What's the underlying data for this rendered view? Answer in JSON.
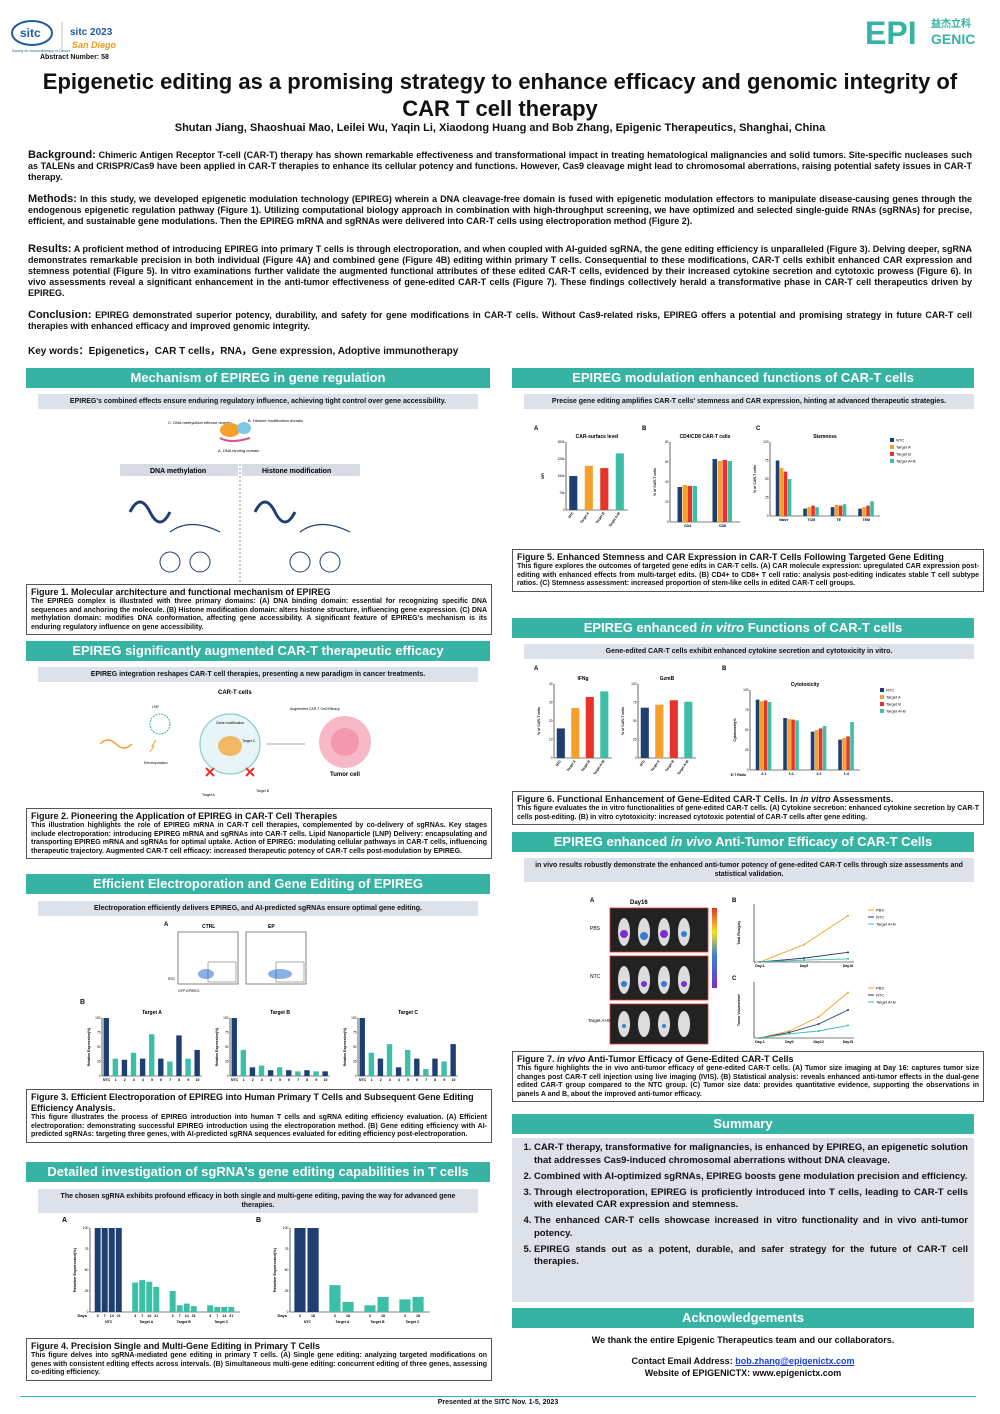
{
  "header": {
    "sitc_logo": "sitc",
    "sitc_logo_sub": "Society for Immunotherapy of Cancer",
    "sitc_event": "sitc 2023",
    "sitc_city": "San Diego",
    "abstract_number": "Abstract Number: 58",
    "epi_logo": "EPI",
    "epi_logo_cn": "益杰立科",
    "epi_logo_word": "GENIC",
    "title": "Epigenetic editing as a promising strategy to enhance efficacy and genomic integrity of CAR T cell therapy",
    "authors": "Shutan Jiang, Shaoshuai Mao, Leilei Wu, Yaqin Li, Xiaodong Huang and Bob Zhang, Epigenic Therapeutics, Shanghai, China"
  },
  "intro": {
    "background_label": "Background:",
    "background": " Chimeric Antigen Receptor T-cell (CAR-T) therapy has shown remarkable effectiveness and transformational impact in treating hematological malignancies and solid tumors. Site-specific nucleases such as TALENs and CRISPR/Cas9 have been applied in CAR-T therapies to enhance its cellular potency and functions. However, Cas9 cleavage might lead to chromosomal aberrations, raising potential safety issues in CAR-T therapy.",
    "methods_label": "Methods:",
    "methods": " In this study, we developed epigenetic modulation technology (EPIREG) wherein a DNA cleavage-free domain is fused with epigenetic modulation effectors to manipulate disease-causing genes through the endogenous epigenetic regulation pathway (Figure 1). Utilizing computational biology approach in combination with high-throughput screening, we have optimized and selected single-guide RNAs (sgRNAs) for precise, efficient, and sustainable gene modulations. Then the EPIREG mRNA and sgRNAs were delivered into CAR-T cells using electroporation method (Figure 2).",
    "results_label": "Results:",
    "results": " A proficient method of introducing EPIREG into primary T cells is through electroporation, and when coupled with AI-guided sgRNA, the gene editing efficiency is unparalleled (Figure 3). Delving deeper, sgRNA demonstrates remarkable precision in both individual (Figure 4A) and combined gene (Figure 4B) editing within primary T cells. Consequential to these modifications, CAR-T cells exhibit enhanced CAR expression and stemness potential (Figure 5). In vitro examinations further validate the augmented functional attributes of these edited CAR-T cells, evidenced by their increased cytokine secretion and cytotoxic prowess (Figure 6). In vivo assessments reveal a significant enhancement in the anti-tumor effectiveness of gene-edited CAR-T cells (Figure 7). These findings collectively herald a transformative phase in CAR-T cell therapeutics driven by EPIREG.",
    "conclusion_label": "Conclusion:",
    "conclusion": " EPIREG demonstrated superior potency, durability, and safety for gene modifications in CAR-T cells. Without Cas9-related risks, EPIREG offers a potential and promising strategy in future CAR-T cell therapies with enhanced efficacy and improved genomic integrity.",
    "keywords": "Key words：Epigenetics，CAR T cells，RNA，Gene expression, Adoptive immunotherapy"
  },
  "sections": {
    "mech": {
      "head": "Mechanism of EPIREG in gene regulation",
      "sub": "EPIREG's combined effects ensure enduring regulatory influence, achieving tight control over gene accessibility.",
      "lbl_c": "C. DNA methylation effector domain",
      "lbl_b": "B. Histone modification domain",
      "lbl_a": "A. DNA binding domain",
      "col1": "DNA methylation",
      "col2": "Histone modification",
      "fig_title": "Figure 1. Molecular architecture and functional mechanism of EPIREG",
      "fig_body": "The EPIREG complex is illustrated with three primary domains: (A) DNA binding domain: essential for recognizing specific DNA sequences and anchoring the molecule. (B) Histone modification domain: alters histone structure, influencing gene expression. (C) DNA methylation domain: modifies DNA conformation, affecting gene accessibility. A significant feature of EPIREG's mechanism is its enduring regulatory influence on gene accessibility."
    },
    "carT": {
      "head": "EPIREG significantly augmented CAR-T therapeutic efficacy",
      "sub": "EPIREG integration reshapes CAR-T cell therapies, presenting a new paradigm in cancer treatments.",
      "cart_cells": "CAR-T cells",
      "lnp": "LNP",
      "electro": "Electroporation",
      "genemod": "Gene modification",
      "augmented": "Augmented CAR-T Cell Efficacy",
      "targetA": "Target A",
      "targetB": "Target B",
      "targetC": "Target C",
      "tumor": "Tumor cell",
      "fig_title": "Figure 2. Pioneering the Application of EPIREG in CAR-T Cell Therapies",
      "fig_body": "This illustration highlights the role of EPIREG mRNA in CAR-T cell therapies, complemented by co-delivery of sgRNAs. Key stages include electroporation: introducing EPIREG mRNA and sgRNAs into CAR-T cells. Lipid Nanoparticle (LNP) Delivery: encapsulating and transporting EPIREG mRNA and sgRNAs for optimal uptake. Action of EPIREG: modulating cellular pathways in CAR-T cells, influencing therapeutic trajectory. Augmented CAR-T cell efficacy: increased therapeutic potency of CAR-T cells post-modulation by EPIREG."
    },
    "electro": {
      "head": "Efficient Electroporation and Gene Editing of EPIREG",
      "sub": "Electroporation efficiently delivers EPIREG, and AI-predicted sgRNAs ensure optimal gene editing.",
      "pA": "A",
      "pB": "B",
      "ctrl": "CTRL",
      "ep": "EP",
      "ssc": "SSC",
      "gfp": "GFP-EPIREG",
      "fig_title": "Figure 3. Efficient Electroporation of EPIREG into Human Primary T Cells and Subsequent Gene Editing Efficiency Analysis.",
      "fig_body": "This figure illustrates the process of EPIREG introduction into human T cells and sgRNA editing efficiency evaluation. (A) Efficient electroporation: demonstrating successful EPIREG introduction using the electroporation method. (B) Gene editing efficiency with AI-predicted sgRNAs: targeting three genes, with AI-predicted sgRNA sequences evaluated for editing efficiency post-electroporation."
    },
    "sgrna": {
      "head": "Detailed investigation of sgRNA's gene editing capabilities in T cells",
      "sub": "The chosen sgRNA exhibits profound efficacy in both single and multi-gene editing, paving the way for advanced gene therapies.",
      "pA": "A",
      "pB": "B",
      "days": "Days",
      "fig_title": "Figure 4. Precision Single and Multi-Gene Editing in Primary T Cells",
      "fig_body": "This figure delves into sgRNA-mediated gene editing in primary T cells. (A) Single gene editing: analyzing targeted modifications on genes with consistent editing effects across intervals. (B) Simultaneous multi-gene editing: concurrent editing of three genes, assessing co-editing efficiency."
    },
    "modul": {
      "head": "EPIREG modulation enhanced functions of CAR-T cells",
      "sub": "Precise gene editing amplifies CAR-T cells' stemness and CAR expression, hinting at advanced therapeutic strategies.",
      "pA": "A",
      "pB": "B",
      "pC": "C",
      "fig_title": "Figure 5. Enhanced Stemness and CAR Expression in CAR-T Cells Following Targeted Gene Editing",
      "fig_body": "This figure explores the outcomes of targeted gene edits in CAR-T cells. (A) CAR molecule expression: upregulated CAR expression post-editing with enhanced effects from multi-target edits. (B) CD4+ to CD8+ T cell ratio: analysis post-editing indicates stable T cell subtype ratios. (C) Stemness assessment: increased proportion of stem-like cells in edited CAR-T cell groups."
    },
    "invitro": {
      "head_pre": "EPIREG enhanced ",
      "head_em": "in vitro",
      "head_post": " Functions of CAR-T cells",
      "sub": "Gene-edited CAR-T cells exhibit enhanced cytokine secretion and cytotoxicity in vitro.",
      "pA": "A",
      "pB": "B",
      "fig_title_pre": "Figure 6. Functional Enhancement of Gene-Edited CAR-T Cells. In ",
      "fig_title_em": "in vitro",
      "fig_title_post": " Assessments.",
      "fig_body": "This figure evaluates the in vitro functionalities of gene-edited CAR-T cells. (A) Cytokine secretion: enhanced cytokine secretion by CAR-T cells post-editing. (B) in vitro cytotoxicity: increased cytotoxic potential of CAR-T cells after gene editing."
    },
    "invivo": {
      "head_pre": "EPIREG enhanced ",
      "head_em": "in vivo",
      "head_post": " Anti-Tumor Efficacy of CAR-T Cells",
      "sub": "in vivo results robustly demonstrate the enhanced anti-tumor potency of gene-edited CAR-T cells through size assessments and statistical validation.",
      "pA": "A",
      "pB": "B",
      "pC": "C",
      "day16": "Day16",
      "pbs": "PBS",
      "ntc": "NTC",
      "tab": "Target A+B",
      "fig_title_pre": "Figure 7. ",
      "fig_title_em": "in vivo",
      "fig_title_post": " Anti-Tumor Efficacy of Gene-Edited CAR-T Cells",
      "fig_body": "This figure highlights the in vivo anti-tumor efficacy of gene-edited CAR-T cells. (A) Tumor size imaging at Day 16: captures tumor size changes post CAR-T cell injection using live imaging (IVIS). (B) Statistical analysis: reveals enhanced anti-tumor effects in the dual-gene edited CAR-T group compared to the NTC group. (C) Tumor size data: provides quantitative evidence, supporting the observations in panels A and B, about the improved anti-tumor efficacy."
    },
    "summary": {
      "head": "Summary",
      "items": [
        "CAR-T therapy, transformative for malignancies, is enhanced by EPIREG, an epigenetic solution that addresses Cas9-induced chromosomal aberrations without DNA cleavage.",
        "Combined with AI-optimized sgRNAs, EPIREG boosts gene modulation precision and efficiency.",
        "Through electroporation, EPIREG is proficiently introduced into T cells, leading to CAR-T cells with elevated CAR expression and stemness.",
        "The enhanced CAR-T cells showcase increased in vitro functionality and in vivo anti-tumor potency.",
        "EPIREG stands out as a potent, durable, and safer strategy for the future of CAR-T cell therapies."
      ]
    },
    "ack": {
      "head": "Acknowledgements",
      "thanks": "We thank the entire Epigenic Therapeutics team and our collaborators.",
      "email_label": "Contact Email Address: ",
      "email": "bob.zhang@epigenictx.com",
      "web": "Website of EPIGENICTX: www.epigenictx.com"
    }
  },
  "footer": "Presented at the SITC  Nov. 1-5, 2023",
  "colors": {
    "teal": "#37b3a3",
    "navy": "#1f3f72",
    "orange": "#f5a02a",
    "red": "#e8322c",
    "green": "#3dbfa7",
    "subbg": "#dde1ea"
  },
  "chart_data": [
    {
      "id": "fig3B-targetA",
      "type": "bar",
      "title": "Target A",
      "ylabel": "Relative Expression(%)",
      "ylim": [
        0,
        100
      ],
      "categories": [
        "NTC",
        "1",
        "2",
        "3",
        "4",
        "5",
        "6",
        "7",
        "8",
        "9",
        "10"
      ],
      "values": [
        100,
        30,
        28,
        40,
        30,
        72,
        30,
        25,
        70,
        30,
        45
      ]
    },
    {
      "id": "fig3B-targetB",
      "type": "bar",
      "title": "Target B",
      "ylabel": "Relative Expression(%)",
      "ylim": [
        0,
        100
      ],
      "categories": [
        "NTC",
        "1",
        "2",
        "3",
        "4",
        "5",
        "6",
        "7",
        "8",
        "9",
        "10"
      ],
      "values": [
        100,
        45,
        15,
        18,
        10,
        15,
        10,
        8,
        10,
        8,
        8
      ]
    },
    {
      "id": "fig3B-targetC",
      "type": "bar",
      "title": "Target C",
      "ylabel": "Relative Expression(%)",
      "ylim": [
        0,
        100
      ],
      "categories": [
        "NTC",
        "1",
        "2",
        "3",
        "4",
        "5",
        "6",
        "7",
        "8",
        "9",
        "10"
      ],
      "values": [
        100,
        40,
        30,
        55,
        15,
        45,
        30,
        12,
        30,
        25,
        55
      ]
    },
    {
      "id": "fig4A",
      "type": "bar",
      "ylabel": "Relative Expression(%)",
      "ylim": [
        0,
        100
      ],
      "xlabel": "Days",
      "groups": [
        "NTC",
        "Target A",
        "Target B",
        "Target C"
      ],
      "days": [
        "3",
        "7",
        "14",
        "21"
      ],
      "values": [
        [
          100,
          100,
          100,
          100
        ],
        [
          35,
          38,
          36,
          30
        ],
        [
          25,
          8,
          10,
          7
        ],
        [
          8,
          6,
          6,
          6
        ]
      ]
    },
    {
      "id": "fig4B",
      "type": "bar",
      "ylabel": "Relative Expression(%)",
      "ylim": [
        0,
        100
      ],
      "xlabel": "Days",
      "groups": [
        "NTC",
        "Target A",
        "Target B",
        "Target C"
      ],
      "days": [
        "3",
        "18"
      ],
      "values": [
        [
          100,
          100
        ],
        [
          32,
          12
        ],
        [
          8,
          18
        ],
        [
          15,
          18
        ]
      ]
    },
    {
      "id": "fig5A",
      "type": "bar",
      "title": "CAR-surface level",
      "ylabel": "MFI",
      "ylim": [
        0,
        300000
      ],
      "categories": [
        "NTC",
        "Target A",
        "Target B",
        "Target A+B"
      ],
      "values": [
        150000,
        195000,
        185000,
        250000
      ]
    },
    {
      "id": "fig5B",
      "type": "bar",
      "title": "CD4/CD8 CAR-T cells",
      "ylabel": "% of CAR-T cells",
      "ylim": [
        0,
        80
      ],
      "categories": [
        "CD4",
        "CD8"
      ],
      "series": [
        {
          "name": "NTC",
          "values": [
            35,
            63
          ]
        },
        {
          "name": "Target A",
          "values": [
            37,
            61
          ]
        },
        {
          "name": "Target B",
          "values": [
            36,
            62
          ]
        },
        {
          "name": "Target A+B",
          "values": [
            36,
            61
          ]
        }
      ]
    },
    {
      "id": "fig5C",
      "type": "bar",
      "title": "Stemness",
      "ylabel": "% of CAR-T cells",
      "ylim": [
        0,
        100
      ],
      "categories": [
        "Naive",
        "TCM",
        "TE",
        "TEM"
      ],
      "series": [
        {
          "name": "NTC",
          "values": [
            75,
            10,
            12,
            10
          ]
        },
        {
          "name": "Target A",
          "values": [
            65,
            12,
            15,
            12
          ]
        },
        {
          "name": "Target B",
          "values": [
            60,
            14,
            14,
            14
          ]
        },
        {
          "name": "Target A+B",
          "values": [
            50,
            12,
            16,
            20
          ]
        }
      ],
      "legend": [
        "NTC",
        "Target A",
        "Target B",
        "Target A+B"
      ]
    },
    {
      "id": "fig6A-ifng",
      "type": "bar",
      "title": "IFNg",
      "ylabel": "% of CAR-T cells",
      "ylim": [
        0,
        40
      ],
      "categories": [
        "NTC",
        "Target A",
        "Target B",
        "Target A+B"
      ],
      "values": [
        16,
        27,
        33,
        36
      ]
    },
    {
      "id": "fig6A-gzmb",
      "type": "bar",
      "title": "GzmB",
      "ylabel": "% of CAR-T cells",
      "ylim": [
        0,
        100
      ],
      "categories": [
        "NTC",
        "Target A",
        "Target B",
        "Target A+B"
      ],
      "values": [
        68,
        72,
        78,
        76
      ]
    },
    {
      "id": "fig6B",
      "type": "bar",
      "title": "Cytotoxicity",
      "ylabel": "Cytotoxicity%",
      "xlabel": "E:T Ratio",
      "ylim": [
        0,
        100
      ],
      "categories": [
        "2:1",
        "1:1",
        "1:2",
        "1:4"
      ],
      "series": [
        {
          "name": "NTC",
          "values": [
            88,
            65,
            48,
            38
          ]
        },
        {
          "name": "Target A",
          "values": [
            86,
            64,
            50,
            40
          ]
        },
        {
          "name": "Target B",
          "values": [
            87,
            63,
            52,
            42
          ]
        },
        {
          "name": "Target A+B",
          "values": [
            85,
            62,
            55,
            60
          ]
        }
      ],
      "legend": [
        "NTC",
        "Target A",
        "Target B",
        "Target A+B"
      ]
    },
    {
      "id": "fig7B",
      "type": "line",
      "ylabel": "Total Flux(p/s)",
      "ylim": [
        0,
        15000000000.0
      ],
      "x": [
        "Day-1",
        "Day9",
        "Day16"
      ],
      "series": [
        {
          "name": "PBS",
          "values": [
            0,
            4500000000.0,
            12000000000.0
          ]
        },
        {
          "name": "NTC",
          "values": [
            0,
            1000000000.0,
            2500000000.0
          ]
        },
        {
          "name": "Target A+B",
          "values": [
            0,
            500000000.0,
            800000000.0
          ]
        }
      ],
      "legend": [
        "PBS",
        "NTC",
        "Target A+B"
      ]
    },
    {
      "id": "fig7C",
      "type": "line",
      "ylabel": "Tumor Volume/mm³",
      "ylim": [
        0,
        800
      ],
      "x": [
        "Day-1",
        "Day9",
        "Day12",
        "Day15"
      ],
      "series": [
        {
          "name": "PBS",
          "values": [
            0,
            100,
            300,
            650
          ]
        },
        {
          "name": "NTC",
          "values": [
            0,
            80,
            200,
            400
          ]
        },
        {
          "name": "Target A+B",
          "values": [
            0,
            60,
            100,
            180
          ]
        }
      ],
      "legend": [
        "PBS",
        "NTC",
        "Target A+B"
      ]
    }
  ]
}
